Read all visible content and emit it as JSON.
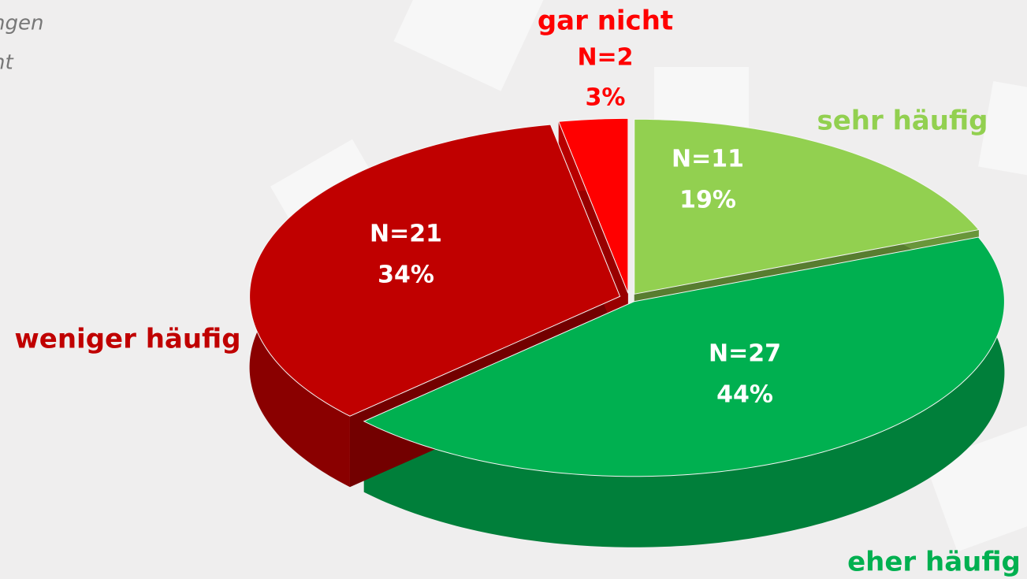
{
  "chart_data": {
    "type": "pie3d",
    "categories": [
      "sehr häufig",
      "eher häufig",
      "weniger häufig",
      "gar nicht"
    ],
    "values": [
      19,
      44,
      34,
      3
    ],
    "value_labels": [
      "19%",
      "44%",
      "34%",
      "3%"
    ],
    "count_labels": [
      "N=11",
      "N=27",
      "N=21",
      "N=2"
    ],
    "colors": [
      "#92d050",
      "#00b050",
      "#c00000",
      "#ff0000"
    ],
    "notes": [
      "ngen",
      "nt"
    ]
  }
}
